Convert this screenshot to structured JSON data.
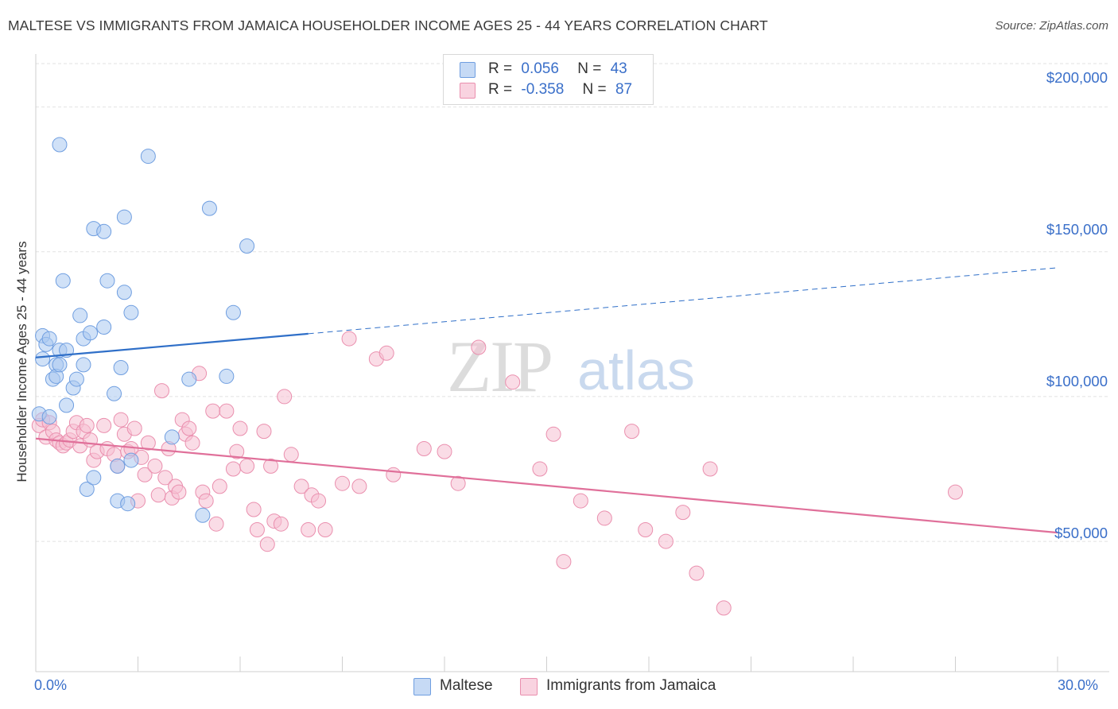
{
  "title": "MALTESE VS IMMIGRANTS FROM JAMAICA HOUSEHOLDER INCOME AGES 25 - 44 YEARS CORRELATION CHART",
  "source": "Source: ZipAtlas.com",
  "watermark": {
    "zip": "ZIP",
    "atlas": "atlas"
  },
  "colors": {
    "maltese_fill": "#aac8f0",
    "maltese_stroke": "#6f9ee0",
    "maltese_line": "#2f6fc8",
    "jamaica_fill": "#f6c0d2",
    "jamaica_stroke": "#ea8fae",
    "jamaica_line": "#e0709a",
    "axis_text": "#3a6fc9"
  },
  "legend": {
    "r_label": "R =",
    "n_label": "N =",
    "rows": [
      {
        "r": "0.056",
        "n": "43"
      },
      {
        "r": "-0.358",
        "n": "87"
      }
    ]
  },
  "chart_data": {
    "type": "scatter",
    "title": "MALTESE VS IMMIGRANTS FROM JAMAICA HOUSEHOLDER INCOME AGES 25 - 44 YEARS CORRELATION CHART",
    "xlabel": "",
    "ylabel": "Householder Income Ages 25 - 44 years",
    "xlim": [
      0,
      30
    ],
    "ylim": [
      5000,
      215000
    ],
    "x_tick_labels": [
      "0.0%",
      "30.0%"
    ],
    "y_ticks": [
      50000,
      100000,
      150000,
      200000
    ],
    "y_tick_labels": [
      "$50,000",
      "$100,000",
      "$150,000",
      "$200,000"
    ],
    "grid": true,
    "legend_position": "top-center",
    "series": [
      {
        "name": "Maltese",
        "points": [
          [
            0.1,
            94000
          ],
          [
            0.2,
            113000
          ],
          [
            0.2,
            121000
          ],
          [
            0.3,
            118000
          ],
          [
            0.4,
            120000
          ],
          [
            0.4,
            93000
          ],
          [
            0.5,
            106000
          ],
          [
            0.6,
            111000
          ],
          [
            0.6,
            107000
          ],
          [
            0.7,
            111000
          ],
          [
            0.7,
            116000
          ],
          [
            0.7,
            187000
          ],
          [
            0.8,
            140000
          ],
          [
            0.9,
            116000
          ],
          [
            0.9,
            97000
          ],
          [
            1.1,
            103000
          ],
          [
            1.2,
            106000
          ],
          [
            1.3,
            128000
          ],
          [
            1.4,
            120000
          ],
          [
            1.4,
            111000
          ],
          [
            1.5,
            68000
          ],
          [
            1.6,
            122000
          ],
          [
            1.7,
            72000
          ],
          [
            1.7,
            158000
          ],
          [
            2.0,
            157000
          ],
          [
            2.0,
            124000
          ],
          [
            2.1,
            140000
          ],
          [
            2.3,
            101000
          ],
          [
            2.4,
            76000
          ],
          [
            2.4,
            64000
          ],
          [
            2.5,
            110000
          ],
          [
            2.6,
            136000
          ],
          [
            2.6,
            162000
          ],
          [
            2.7,
            63000
          ],
          [
            2.8,
            129000
          ],
          [
            2.8,
            78000
          ],
          [
            3.3,
            183000
          ],
          [
            4.0,
            86000
          ],
          [
            4.5,
            106000
          ],
          [
            4.9,
            59000
          ],
          [
            5.1,
            165000
          ],
          [
            5.6,
            107000
          ],
          [
            5.8,
            129000
          ],
          [
            6.2,
            152000
          ]
        ],
        "trend_solid": [
          [
            0,
            113500
          ],
          [
            8,
            121700
          ]
        ],
        "trend_dashed": [
          [
            8,
            121700
          ],
          [
            30,
            144500
          ]
        ]
      },
      {
        "name": "Immigrants from Jamaica",
        "points": [
          [
            0.1,
            90000
          ],
          [
            0.2,
            92000
          ],
          [
            0.3,
            86000
          ],
          [
            0.4,
            91000
          ],
          [
            0.5,
            88000
          ],
          [
            0.6,
            85000
          ],
          [
            0.7,
            84000
          ],
          [
            0.8,
            83000
          ],
          [
            0.9,
            84000
          ],
          [
            1.0,
            85000
          ],
          [
            1.1,
            88000
          ],
          [
            1.2,
            91000
          ],
          [
            1.3,
            83000
          ],
          [
            1.4,
            88000
          ],
          [
            1.5,
            90000
          ],
          [
            1.6,
            85000
          ],
          [
            1.7,
            78000
          ],
          [
            1.8,
            81000
          ],
          [
            2.0,
            90000
          ],
          [
            2.1,
            82000
          ],
          [
            2.3,
            80000
          ],
          [
            2.4,
            76000
          ],
          [
            2.5,
            92000
          ],
          [
            2.6,
            87000
          ],
          [
            2.7,
            81000
          ],
          [
            2.8,
            82000
          ],
          [
            2.9,
            89000
          ],
          [
            3.0,
            64000
          ],
          [
            3.1,
            79000
          ],
          [
            3.2,
            73000
          ],
          [
            3.3,
            84000
          ],
          [
            3.5,
            76000
          ],
          [
            3.6,
            66000
          ],
          [
            3.7,
            102000
          ],
          [
            3.8,
            72000
          ],
          [
            3.9,
            82000
          ],
          [
            4.0,
            65000
          ],
          [
            4.1,
            69000
          ],
          [
            4.2,
            67000
          ],
          [
            4.3,
            92000
          ],
          [
            4.4,
            87000
          ],
          [
            4.5,
            89000
          ],
          [
            4.6,
            84000
          ],
          [
            4.8,
            108000
          ],
          [
            4.9,
            67000
          ],
          [
            5.0,
            64000
          ],
          [
            5.2,
            95000
          ],
          [
            5.3,
            56000
          ],
          [
            5.4,
            69000
          ],
          [
            5.6,
            95000
          ],
          [
            5.8,
            75000
          ],
          [
            5.9,
            81000
          ],
          [
            6.0,
            89000
          ],
          [
            6.2,
            76000
          ],
          [
            6.4,
            61000
          ],
          [
            6.5,
            54000
          ],
          [
            6.7,
            88000
          ],
          [
            6.8,
            49000
          ],
          [
            6.9,
            76000
          ],
          [
            7.0,
            57000
          ],
          [
            7.2,
            56000
          ],
          [
            7.3,
            100000
          ],
          [
            7.5,
            80000
          ],
          [
            7.8,
            69000
          ],
          [
            8.0,
            54000
          ],
          [
            8.1,
            66000
          ],
          [
            8.3,
            64000
          ],
          [
            8.5,
            54000
          ],
          [
            9.0,
            70000
          ],
          [
            9.2,
            120000
          ],
          [
            9.5,
            69000
          ],
          [
            10.0,
            113000
          ],
          [
            10.3,
            115000
          ],
          [
            10.5,
            73000
          ],
          [
            11.4,
            82000
          ],
          [
            12.0,
            81000
          ],
          [
            12.4,
            70000
          ],
          [
            13.0,
            117000
          ],
          [
            14.0,
            105000
          ],
          [
            14.8,
            75000
          ],
          [
            15.2,
            87000
          ],
          [
            15.5,
            43000
          ],
          [
            16.0,
            64000
          ],
          [
            16.7,
            58000
          ],
          [
            17.5,
            88000
          ],
          [
            17.9,
            54000
          ],
          [
            18.5,
            50000
          ],
          [
            19.0,
            60000
          ],
          [
            19.4,
            39000
          ],
          [
            19.8,
            75000
          ],
          [
            20.2,
            27000
          ],
          [
            27.0,
            67000
          ]
        ],
        "trend": [
          [
            0,
            85500
          ],
          [
            30,
            53000
          ]
        ]
      }
    ]
  },
  "bottom_legend": [
    {
      "name": "Maltese"
    },
    {
      "name": "Immigrants from Jamaica"
    }
  ]
}
